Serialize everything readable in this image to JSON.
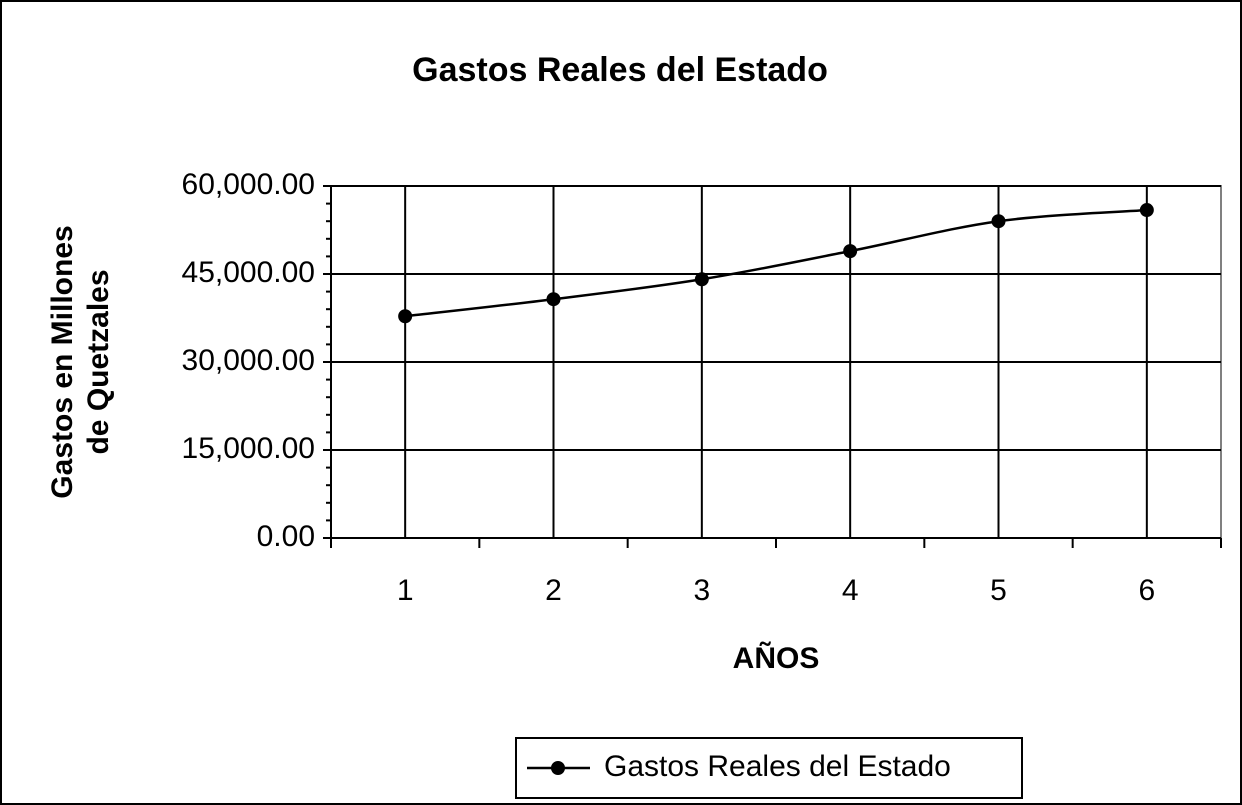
{
  "chart_data": {
    "type": "line",
    "title": "Gastos Reales del Estado",
    "x_label": "AÑOS",
    "y_label": [
      "Gastos en Millones",
      "de Quetzales"
    ],
    "categories": [
      "1",
      "2",
      "3",
      "4",
      "5",
      "6"
    ],
    "series": [
      {
        "name": "Gastos Reales del Estado",
        "color": "#000000",
        "values": [
          37800,
          40700,
          44100,
          48900,
          54000,
          55900
        ]
      }
    ],
    "ylim": [
      0,
      60000
    ],
    "yticks": [
      {
        "value": 0,
        "label": "0.00"
      },
      {
        "value": 15000,
        "label": "15,000.00"
      },
      {
        "value": 30000,
        "label": "30,000.00"
      },
      {
        "value": 45000,
        "label": "45,000.00"
      },
      {
        "value": 60000,
        "label": "60,000.00"
      }
    ],
    "yminorticks": [
      3000,
      6000,
      9000,
      12000,
      18000,
      21000,
      24000,
      27000,
      33000,
      36000,
      39000,
      42000,
      48000,
      51000,
      54000,
      57000
    ],
    "grid": true,
    "legend": "bottom"
  }
}
